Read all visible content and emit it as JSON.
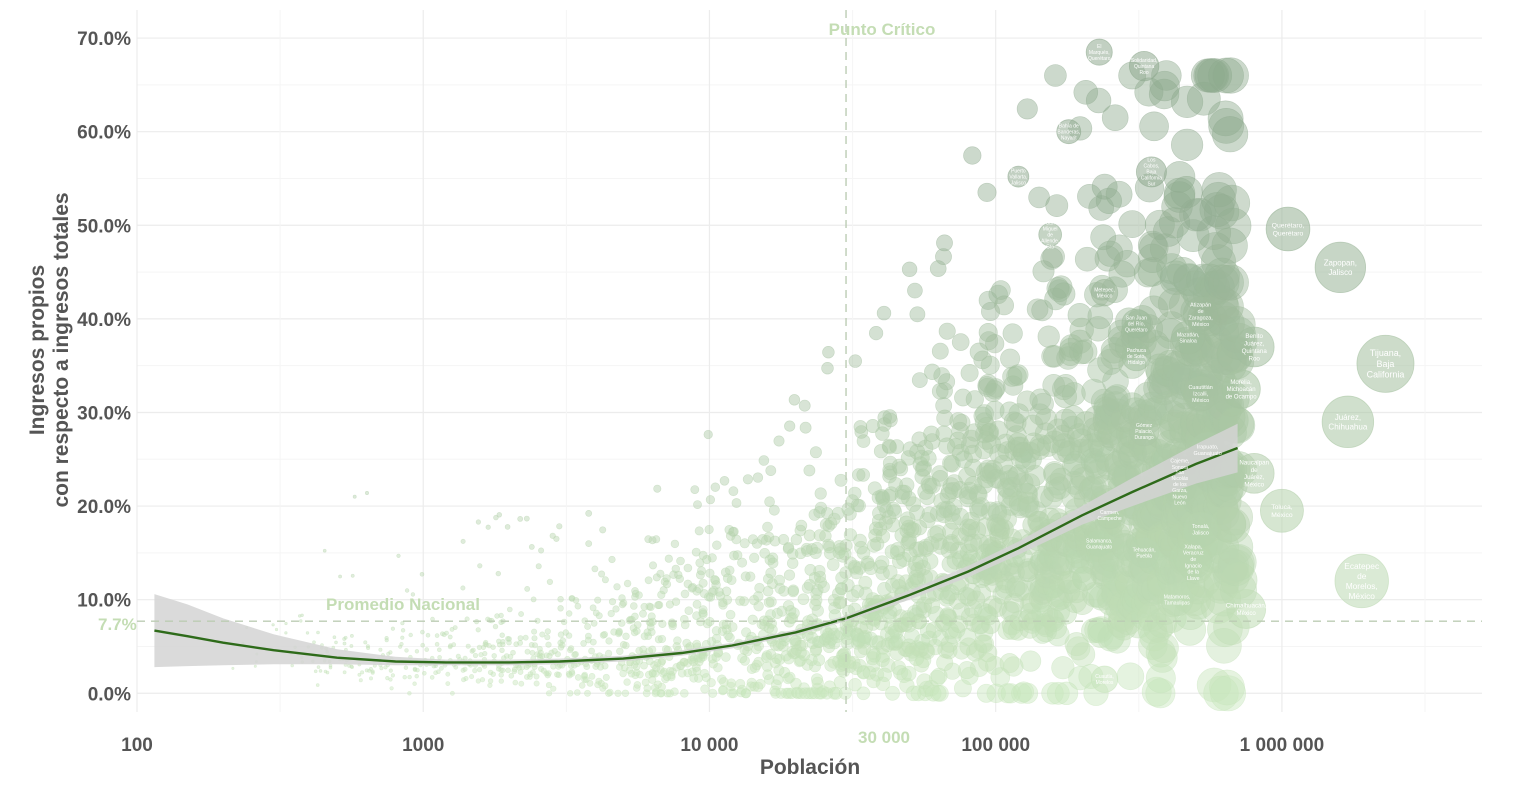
{
  "chart_data": {
    "type": "scatter",
    "title": "",
    "xlabel": "Población",
    "ylabel_lines": [
      "Ingresos propios",
      "con respecto a ingresos totales"
    ],
    "x_scale": "log",
    "xlim": [
      100,
      5000000
    ],
    "ylim": [
      -0.02,
      0.73
    ],
    "x_ticks": [
      {
        "value": 100,
        "label": "100"
      },
      {
        "value": 1000,
        "label": "1000"
      },
      {
        "value": 10000,
        "label": "10 000"
      },
      {
        "value": 100000,
        "label": "100 000"
      },
      {
        "value": 1000000,
        "label": "1 000 000"
      }
    ],
    "y_ticks": [
      {
        "value": 0.0,
        "label": "0.0%"
      },
      {
        "value": 0.1,
        "label": "10.0%"
      },
      {
        "value": 0.2,
        "label": "20.0%"
      },
      {
        "value": 0.3,
        "label": "30.0%"
      },
      {
        "value": 0.4,
        "label": "40.0%"
      },
      {
        "value": 0.5,
        "label": "50.0%"
      },
      {
        "value": 0.6,
        "label": "60.0%"
      },
      {
        "value": 0.7,
        "label": "70.0%"
      }
    ],
    "grid": true,
    "reference_lines": {
      "horizontal": {
        "value": 0.077,
        "label": "Promedio Nacional",
        "value_label": "7.7%"
      },
      "vertical": {
        "value": 30000,
        "label": "Punto Crítico",
        "value_label": "30 000"
      }
    },
    "colors": {
      "bubble_light": "#c8e6bc",
      "bubble_dark": "#8faa8f",
      "trend": "#2e6b1a",
      "ribbon": "#d3d3d3",
      "annotation": "#c4ddb4",
      "grid": "#ececec",
      "axis_text": "#555555"
    },
    "trend": {
      "x": [
        115,
        150,
        200,
        300,
        500,
        800,
        1200,
        2000,
        3000,
        5000,
        8000,
        12000,
        20000,
        30000,
        50000,
        80000,
        120000,
        200000,
        300000,
        500000,
        700000
      ],
      "y": [
        0.067,
        0.061,
        0.054,
        0.046,
        0.038,
        0.034,
        0.033,
        0.033,
        0.034,
        0.037,
        0.043,
        0.051,
        0.065,
        0.08,
        0.105,
        0.13,
        0.155,
        0.19,
        0.215,
        0.245,
        0.262
      ],
      "ci_lower": [
        0.028,
        0.029,
        0.03,
        0.031,
        0.031,
        0.03,
        0.03,
        0.03,
        0.031,
        0.034,
        0.04,
        0.048,
        0.062,
        0.077,
        0.1,
        0.124,
        0.148,
        0.18,
        0.2,
        0.224,
        0.236
      ],
      "ci_upper": [
        0.106,
        0.095,
        0.08,
        0.063,
        0.047,
        0.039,
        0.036,
        0.036,
        0.037,
        0.04,
        0.046,
        0.054,
        0.068,
        0.083,
        0.11,
        0.136,
        0.162,
        0.2,
        0.23,
        0.266,
        0.288
      ]
    },
    "labeled_points": [
      {
        "x": 230000,
        "y": 0.685,
        "label": "El Marqués, Querétaro"
      },
      {
        "x": 330000,
        "y": 0.67,
        "label": "Solidaridad, Quintana Roo"
      },
      {
        "x": 180000,
        "y": 0.6,
        "label": "Bahía de Banderas, Nayarit"
      },
      {
        "x": 350000,
        "y": 0.557,
        "label": "Los Cabos, Baja California Sur"
      },
      {
        "x": 120000,
        "y": 0.552,
        "label": "Puerto Vallarta, Jalisco"
      },
      {
        "x": 155000,
        "y": 0.49,
        "label": "San Miguel de Allende, Gto"
      },
      {
        "x": 1050000,
        "y": 0.496,
        "label": "Querétaro, Querétaro"
      },
      {
        "x": 1600000,
        "y": 0.455,
        "label": "Zapopan, Jalisco"
      },
      {
        "x": 240000,
        "y": 0.428,
        "label": "Metepec, México"
      },
      {
        "x": 520000,
        "y": 0.405,
        "label": "Atizapán de Zaragoza, México"
      },
      {
        "x": 310000,
        "y": 0.395,
        "label": "San Juan del Río, Querétaro"
      },
      {
        "x": 470000,
        "y": 0.38,
        "label": "Mazatlán, Sinaloa"
      },
      {
        "x": 800000,
        "y": 0.37,
        "label": "Benito Juárez, Quintana Roo"
      },
      {
        "x": 2300000,
        "y": 0.352,
        "label": "Tijuana, Baja California"
      },
      {
        "x": 310000,
        "y": 0.36,
        "label": "Pachuca de Soto, Hidalgo"
      },
      {
        "x": 520000,
        "y": 0.32,
        "label": "Cuautitlán Izcalli, México"
      },
      {
        "x": 720000,
        "y": 0.325,
        "label": "Morelia, Michoacán de Ocampo"
      },
      {
        "x": 1700000,
        "y": 0.29,
        "label": "Juárez, Chihuahua"
      },
      {
        "x": 330000,
        "y": 0.28,
        "label": "Gómez Palacio, Durango"
      },
      {
        "x": 550000,
        "y": 0.26,
        "label": "Irapuato, Guanajuato"
      },
      {
        "x": 800000,
        "y": 0.235,
        "label": "Naucalpan de Juárez, México"
      },
      {
        "x": 440000,
        "y": 0.245,
        "label": "Cajeme, Sonora"
      },
      {
        "x": 440000,
        "y": 0.22,
        "label": "San Nicolás de los Garza, Nuevo León"
      },
      {
        "x": 1000000,
        "y": 0.195,
        "label": "Toluca, México"
      },
      {
        "x": 520000,
        "y": 0.175,
        "label": "Tonalá, Jalisco"
      },
      {
        "x": 490000,
        "y": 0.14,
        "label": "Xalapa, Veracruz de Ignacio de la Llave"
      },
      {
        "x": 430000,
        "y": 0.1,
        "label": "Matamoros, Tamaulipas"
      },
      {
        "x": 750000,
        "y": 0.09,
        "label": "Chimalhuacán, México"
      },
      {
        "x": 1900000,
        "y": 0.12,
        "label": "Ecatepec de Morelos, México"
      },
      {
        "x": 330000,
        "y": 0.15,
        "label": "Tehuacán, Puebla"
      },
      {
        "x": 230000,
        "y": 0.16,
        "label": "Salamanca, Guanajuato"
      },
      {
        "x": 250000,
        "y": 0.19,
        "label": "Carmen, Campeche"
      },
      {
        "x": 240000,
        "y": 0.015,
        "label": "Cuautla, Morelos"
      }
    ]
  }
}
